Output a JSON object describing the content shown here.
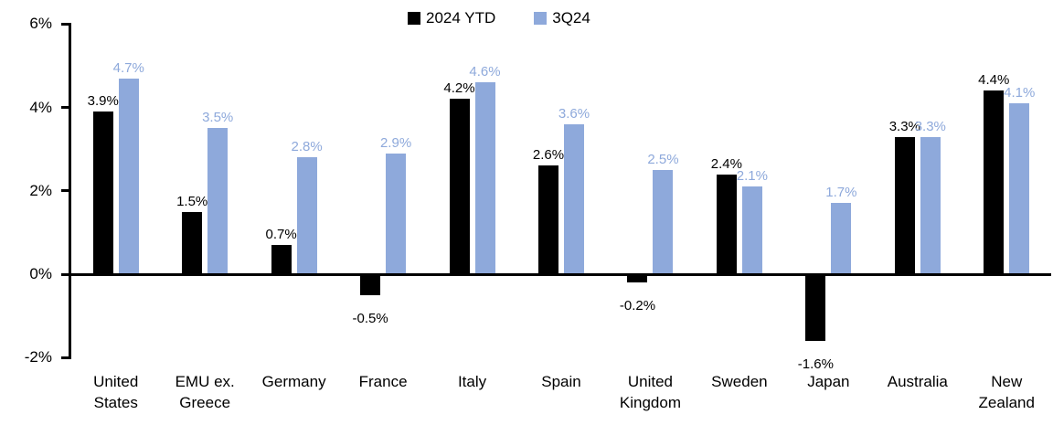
{
  "chart_data": {
    "type": "bar",
    "categories": [
      "United States",
      "EMU ex. Greece",
      "Germany",
      "France",
      "Italy",
      "Spain",
      "United Kingdom",
      "Sweden",
      "Japan",
      "Australia",
      "New Zealand"
    ],
    "categories_wrapped": [
      "United\nStates",
      "EMU ex.\nGreece",
      "Germany",
      "France",
      "Italy",
      "Spain",
      "United\nKingdom",
      "Sweden",
      "Japan",
      "Australia",
      "New\nZealand"
    ],
    "series": [
      {
        "name": "2024 YTD",
        "color": "#000000",
        "values": [
          3.9,
          1.5,
          0.7,
          -0.5,
          4.2,
          2.6,
          -0.2,
          2.4,
          -1.6,
          3.3,
          4.4
        ],
        "labels": [
          "3.9%",
          "1.5%",
          "0.7%",
          "-0.5%",
          "4.2%",
          "2.6%",
          "-0.2%",
          "2.4%",
          "-1.6%",
          "3.3%",
          "4.4%"
        ]
      },
      {
        "name": "3Q24",
        "color": "#8EA9DB",
        "values": [
          4.7,
          3.5,
          2.8,
          2.9,
          4.6,
          3.6,
          2.5,
          2.1,
          1.7,
          3.3,
          4.1
        ],
        "labels": [
          "4.7%",
          "3.5%",
          "2.8%",
          "2.9%",
          "4.6%",
          "3.6%",
          "2.5%",
          "2.1%",
          "1.7%",
          "3.3%",
          "4.1%"
        ]
      }
    ],
    "y_axis": {
      "min": -2,
      "max": 6,
      "ticks": [
        {
          "label": "6%",
          "value": 6
        },
        {
          "label": "4%",
          "value": 4
        },
        {
          "label": "2%",
          "value": 2
        },
        {
          "label": "0%",
          "value": 0
        },
        {
          "label": "-2%",
          "value": -2
        }
      ]
    },
    "legend_position": "top",
    "grid": false,
    "axis_color": "#000000",
    "background_color": "#FFFFFF"
  }
}
